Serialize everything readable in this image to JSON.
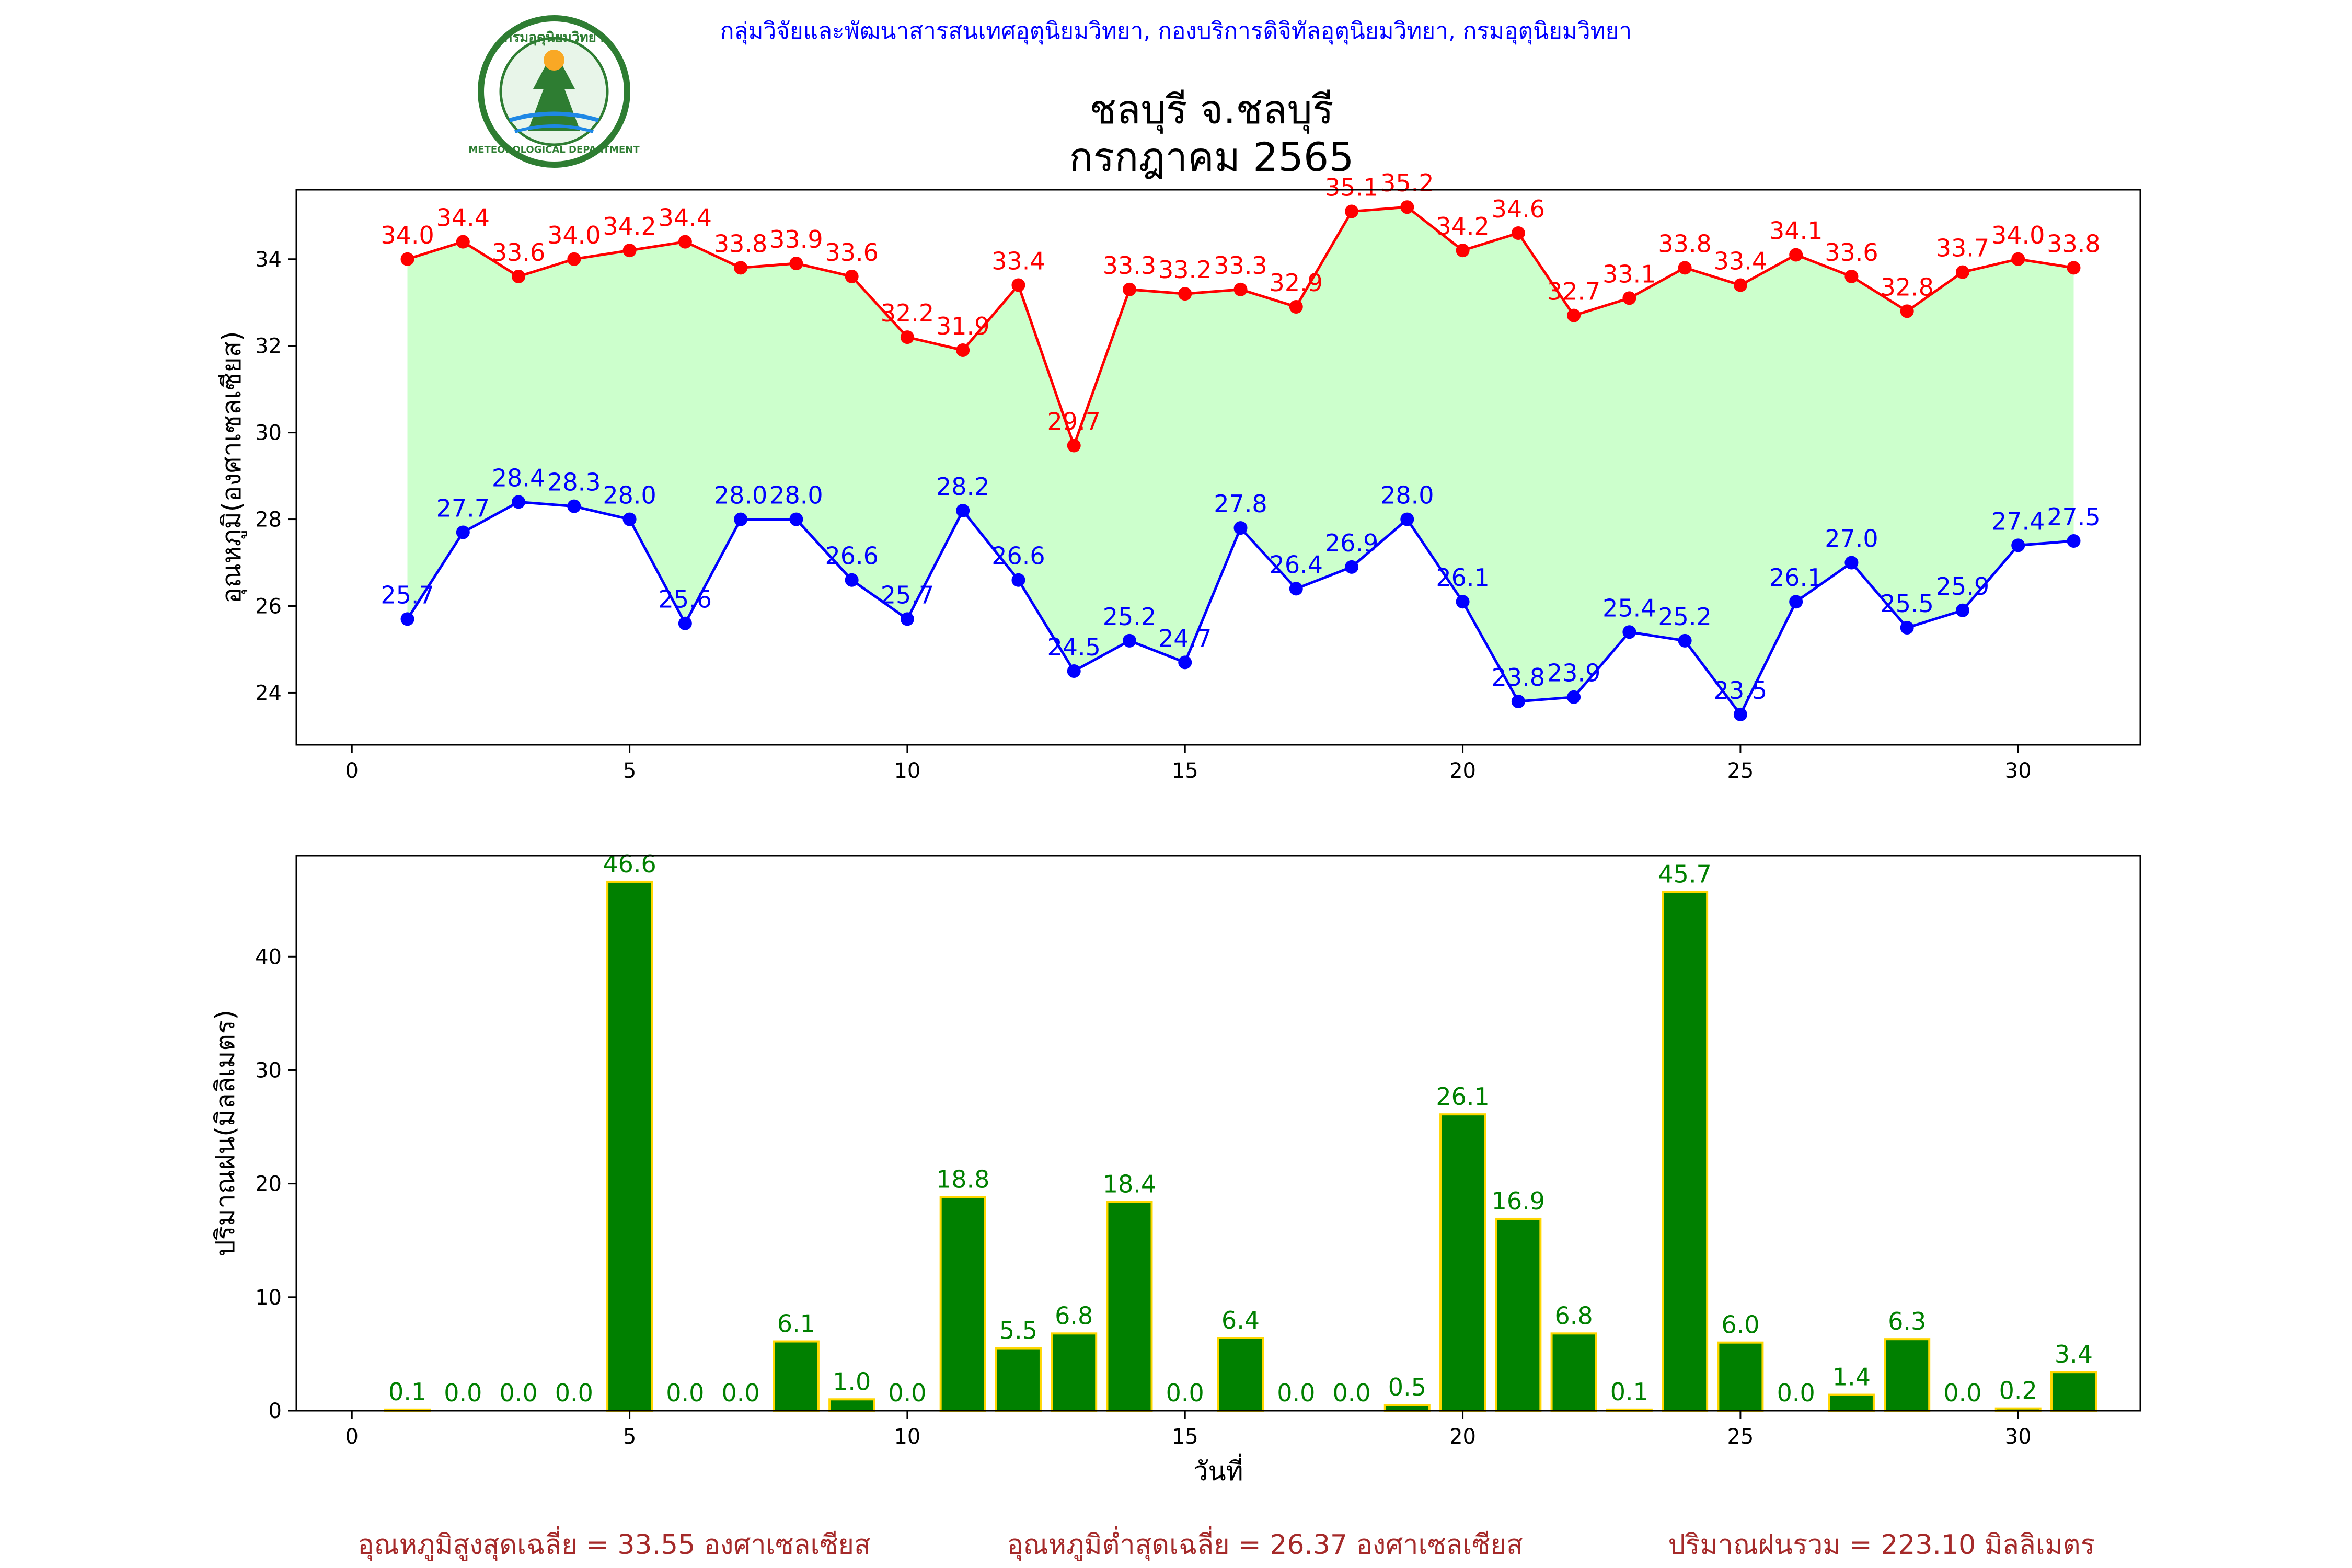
{
  "header": {
    "org_line": "กลุ่มวิจัยและพัฒนาสารสนเทศอุตุนิยมวิทยา, กองบริการดิจิทัลอุตุนิยมวิทยา, กรมอุตุนิยมวิทยา",
    "logo": {
      "icon": "meteorological-department-seal",
      "top_text": "กรมอุตุนิยมวิทยา",
      "bottom_text": "METEOROLOGICAL DEPARTMENT"
    },
    "title_line1": "ชลบุรี จ.ชลบุรี",
    "title_line2": "กรกฎาคม 2565"
  },
  "colors": {
    "max_temp": "#ff0000",
    "min_temp": "#0000ff",
    "band_fill": "#ccffcc",
    "rain_bar": "#008000",
    "rain_edge": "#ffd700",
    "rain_label": "#008000",
    "footer_text": "#a52a2a",
    "org_text": "#0000ff"
  },
  "chart_data": [
    {
      "type": "line",
      "ylabel": "อุณหภูมิ(องศาเซลเซียส)",
      "xlabel": "",
      "xlim": [
        -1,
        32.2
      ],
      "ylim": [
        22.8,
        35.6
      ],
      "xticks": [
        0,
        5,
        10,
        15,
        20,
        25,
        30
      ],
      "yticks": [
        24,
        26,
        28,
        30,
        32,
        34
      ],
      "grid": false,
      "x": [
        1,
        2,
        3,
        4,
        5,
        6,
        7,
        8,
        9,
        10,
        11,
        12,
        13,
        14,
        15,
        16,
        17,
        18,
        19,
        20,
        21,
        22,
        23,
        24,
        25,
        26,
        27,
        28,
        29,
        30,
        31
      ],
      "series": [
        {
          "key": "max",
          "values": [
            34.0,
            34.4,
            33.6,
            34.0,
            34.2,
            34.4,
            33.8,
            33.9,
            33.6,
            32.2,
            31.9,
            33.4,
            29.7,
            33.3,
            33.2,
            33.3,
            32.9,
            35.1,
            35.2,
            34.2,
            34.6,
            32.7,
            33.1,
            33.8,
            33.4,
            34.1,
            33.6,
            32.8,
            33.7,
            34.0,
            33.8
          ]
        },
        {
          "key": "min",
          "values": [
            25.7,
            27.7,
            28.4,
            28.3,
            28.0,
            25.6,
            28.0,
            28.0,
            26.6,
            25.7,
            28.2,
            26.6,
            24.5,
            25.2,
            24.7,
            27.8,
            26.4,
            26.9,
            28.0,
            26.1,
            23.8,
            23.9,
            25.4,
            25.2,
            23.5,
            26.1,
            27.0,
            25.5,
            25.9,
            27.4,
            27.5
          ]
        }
      ]
    },
    {
      "type": "bar",
      "ylabel": "ปริมาณฝน(มิลลิเมตร)",
      "xlabel": "วันที่",
      "xlim": [
        -1,
        32.2
      ],
      "ylim": [
        0,
        48.9
      ],
      "xticks": [
        0,
        5,
        10,
        15,
        20,
        25,
        30
      ],
      "yticks": [
        0,
        10,
        20,
        30,
        40
      ],
      "grid": false,
      "categories": [
        1,
        2,
        3,
        4,
        5,
        6,
        7,
        8,
        9,
        10,
        11,
        12,
        13,
        14,
        15,
        16,
        17,
        18,
        19,
        20,
        21,
        22,
        23,
        24,
        25,
        26,
        27,
        28,
        29,
        30,
        31
      ],
      "values": [
        0.1,
        0.0,
        0.0,
        0.0,
        46.6,
        0.0,
        0.0,
        6.1,
        1.0,
        0.0,
        18.8,
        5.5,
        6.8,
        18.4,
        0.0,
        6.4,
        0.0,
        0.0,
        0.5,
        26.1,
        16.9,
        6.8,
        0.1,
        45.7,
        6.0,
        0.0,
        1.4,
        6.3,
        0.0,
        0.2,
        3.4
      ]
    }
  ],
  "footer": {
    "avg_max": "อุณหภูมิสูงสุดเฉลี่ย = 33.55 องศาเซลเซียส",
    "avg_min": "อุณหภูมิต่ำสุดเฉลี่ย = 26.37 องศาเซลเซียส",
    "total_rain": "ปริมาณฝนรวม = 223.10 มิลลิเมตร"
  }
}
